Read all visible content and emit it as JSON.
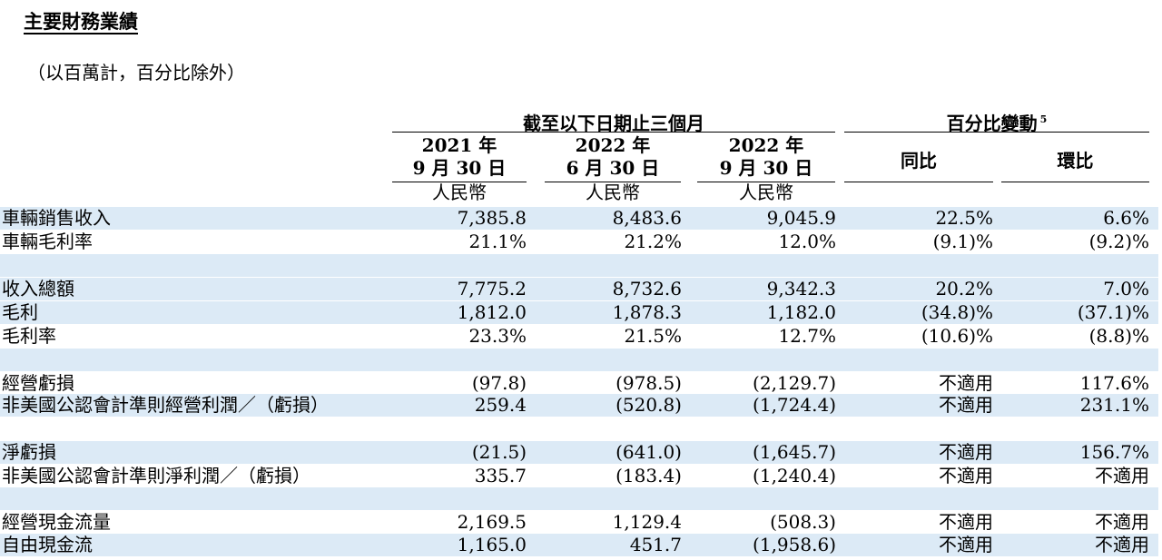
{
  "title": "主要財務業績",
  "subtitle": "（以百萬計，百分比除外）",
  "header": {
    "group1": "截至以下日期止三個月",
    "group2": "百分比變動",
    "group2_sup": "5",
    "col1_year": "2021 年",
    "col1_date": "9 月 30 日",
    "col2_year": "2022 年",
    "col2_date": "6 月 30 日",
    "col3_year": "2022 年",
    "col3_date": "9 月 30 日",
    "currency": "人民幣",
    "yoy": "同比",
    "qoq": "環比"
  },
  "rows": [
    {
      "label": "車輛銷售收入",
      "v": [
        "7,385.8",
        "8,483.6",
        "9,045.9",
        "22.5%",
        "6.6%"
      ]
    },
    {
      "label": "車輛毛利率",
      "v": [
        "21.1%",
        "21.2%",
        "12.0%",
        "(9.1)%",
        "(9.2)%"
      ]
    },
    {
      "label": "",
      "v": [
        "",
        "",
        "",
        "",
        ""
      ]
    },
    {
      "label": "收入總額",
      "v": [
        "7,775.2",
        "8,732.6",
        "9,342.3",
        "20.2%",
        "7.0%"
      ]
    },
    {
      "label": "毛利",
      "v": [
        "1,812.0",
        "1,878.3",
        "1,182.0",
        "(34.8)%",
        "(37.1)%"
      ]
    },
    {
      "label": "毛利率",
      "v": [
        "23.3%",
        "21.5%",
        "12.7%",
        "(10.6)%",
        "(8.8)%"
      ]
    },
    {
      "label": "",
      "v": [
        "",
        "",
        "",
        "",
        ""
      ]
    },
    {
      "label": "經營虧損",
      "v": [
        "(97.8)",
        "(978.5)",
        "(2,129.7)",
        "不適用",
        "117.6%"
      ]
    },
    {
      "label": "非美國公認會計準則經營利潤／（虧損）",
      "v": [
        "259.4",
        "(520.8)",
        "(1,724.4)",
        "不適用",
        "231.1%"
      ]
    },
    {
      "label": "",
      "v": [
        "",
        "",
        "",
        "",
        ""
      ]
    },
    {
      "label": "淨虧損",
      "v": [
        "(21.5)",
        "(641.0)",
        "(1,645.7)",
        "不適用",
        "156.7%"
      ]
    },
    {
      "label": "非美國公認會計準則淨利潤／（虧損）",
      "v": [
        "335.7",
        "(183.4)",
        "(1,240.4)",
        "不適用",
        "不適用"
      ]
    },
    {
      "label": "",
      "v": [
        "",
        "",
        "",
        "",
        ""
      ]
    },
    {
      "label": "經營現金流量",
      "v": [
        "2,169.5",
        "1,129.4",
        "(508.3)",
        "不適用",
        "不適用"
      ]
    },
    {
      "label": "自由現金流",
      "v": [
        "1,165.0",
        "451.7",
        "(1,958.6)",
        "不適用",
        "不適用"
      ]
    }
  ]
}
